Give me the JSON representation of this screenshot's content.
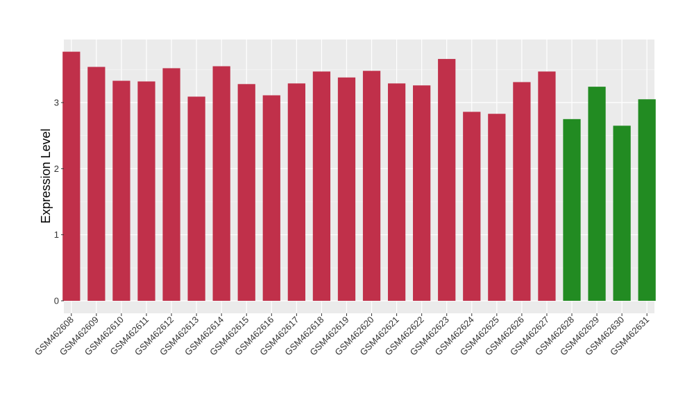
{
  "chart_data": {
    "type": "bar",
    "title": "",
    "xlabel": "",
    "ylabel": "Expression Level",
    "ylim": [
      0,
      4
    ],
    "xlim": [
      -0.3,
      23.3
    ],
    "yticks": [
      0,
      1,
      2,
      3
    ],
    "grid": true,
    "legend": "none",
    "colors": {
      "panel": "#ebebeb",
      "grid_major": "#ffffff",
      "grid_minor": "#f5f5f5",
      "red": "#c0304a",
      "green": "#228b22",
      "tick": "#333333"
    },
    "categories": [
      "GSM462608",
      "GSM462609",
      "GSM462610",
      "GSM462611",
      "GSM462612",
      "GSM462613",
      "GSM462614",
      "GSM462615",
      "GSM462616",
      "GSM462617",
      "GSM462618",
      "GSM462619",
      "GSM462620",
      "GSM462621",
      "GSM462622",
      "GSM462623",
      "GSM462624",
      "GSM462625",
      "GSM462626",
      "GSM462627",
      "GSM462628",
      "GSM462629",
      "GSM462630",
      "GSM462631"
    ],
    "values": [
      3.77,
      3.54,
      3.33,
      3.32,
      3.52,
      3.09,
      3.55,
      3.28,
      3.11,
      3.29,
      3.47,
      3.38,
      3.48,
      3.29,
      3.26,
      3.66,
      2.86,
      2.83,
      3.31,
      3.47,
      2.75,
      3.24,
      2.65,
      3.05
    ],
    "bar_colors": [
      "red",
      "red",
      "red",
      "red",
      "red",
      "red",
      "red",
      "red",
      "red",
      "red",
      "red",
      "red",
      "red",
      "red",
      "red",
      "red",
      "red",
      "red",
      "red",
      "red",
      "green",
      "green",
      "green",
      "green"
    ]
  }
}
